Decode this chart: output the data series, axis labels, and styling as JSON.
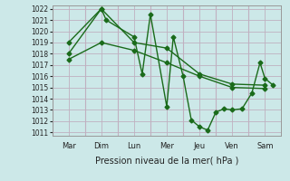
{
  "bg_color": "#cce8e8",
  "grid_color": "#c0b0c0",
  "line_color": "#1a6b1a",
  "xlabel": "Pression niveau de la mer( hPa )",
  "ylim": [
    1011,
    1022
  ],
  "yticks": [
    1011,
    1012,
    1013,
    1014,
    1015,
    1016,
    1017,
    1018,
    1019,
    1020,
    1021,
    1022
  ],
  "day_labels": [
    "Mar",
    "Dim",
    "Lun",
    "Mer",
    "Jeu",
    "Ven",
    "Sam"
  ],
  "num_days": 7,
  "line1_x": [
    0.0,
    1.0,
    1.15,
    2.0,
    2.25,
    2.5,
    3.0,
    3.2,
    3.5,
    3.75,
    4.0,
    4.25,
    4.5,
    4.75,
    5.0,
    5.3,
    5.6,
    5.85,
    6.0,
    6.25
  ],
  "line1_y": [
    1018.0,
    1022.0,
    1021.0,
    1019.5,
    1016.2,
    1021.5,
    1013.3,
    1019.5,
    1016.0,
    1012.1,
    1011.5,
    1011.2,
    1012.8,
    1013.1,
    1013.0,
    1013.1,
    1014.5,
    1017.2,
    1015.8,
    1015.2
  ],
  "line2_x": [
    0.0,
    1.0,
    2.0,
    3.0,
    4.0,
    5.0,
    6.0
  ],
  "line2_y": [
    1019.0,
    1022.0,
    1019.0,
    1018.5,
    1016.2,
    1015.3,
    1015.2
  ],
  "line3_x": [
    0.0,
    1.0,
    2.0,
    3.0,
    4.0,
    5.0,
    6.0
  ],
  "line3_y": [
    1017.5,
    1019.0,
    1018.3,
    1017.2,
    1016.0,
    1015.0,
    1014.9
  ],
  "marker_size": 2.5,
  "linewidth": 1.0
}
